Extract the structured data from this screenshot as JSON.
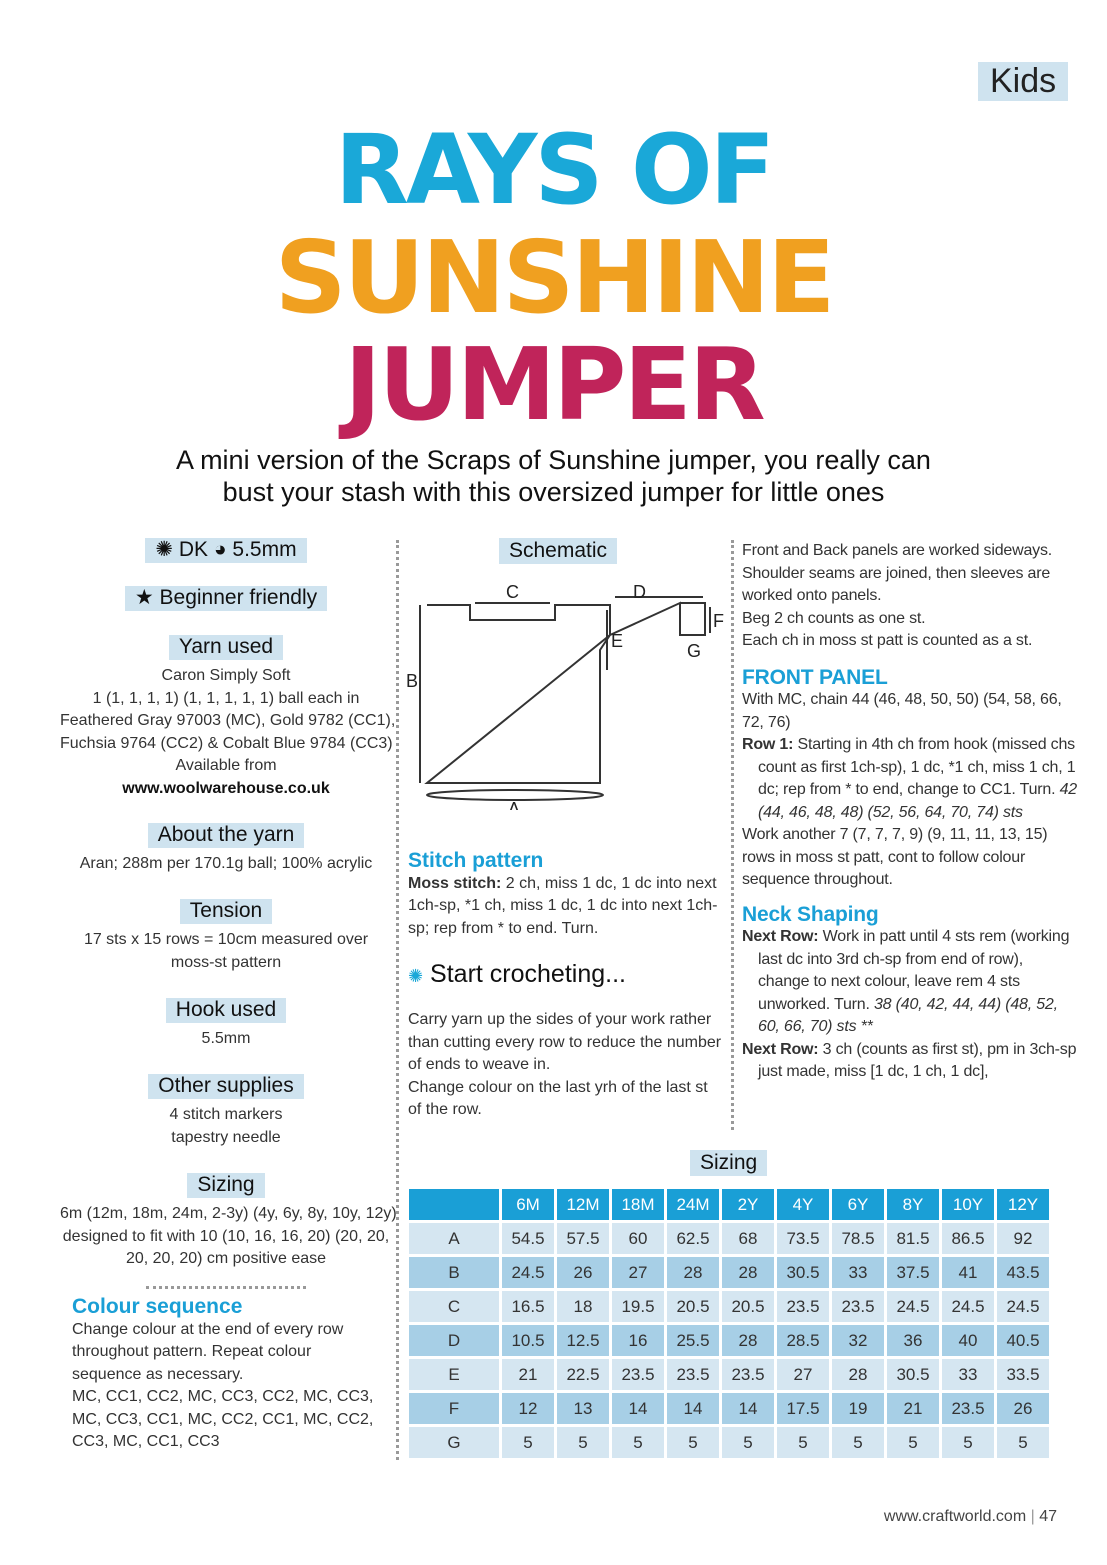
{
  "section_tag": "Kids",
  "title": {
    "line1": "RAYS OF",
    "line2": "SUNSHINE",
    "line3": "JUMPER",
    "colors": [
      "#1aa8d8",
      "#f0a020",
      "#c0245a"
    ]
  },
  "subtitle": [
    "A mini version of the Scraps of Sunshine jumper, you really can",
    "bust your stash with this oversized jumper for little ones"
  ],
  "left": {
    "weight": "DK",
    "hook": "5.5mm",
    "level": "Beginner friendly",
    "yarn_used": {
      "label": "Yarn used",
      "lines": [
        "Caron Simply Soft",
        "1 (1, 1, 1, 1) (1, 1, 1, 1, 1) ball each in",
        "Feathered Gray 97003 (MC), Gold 9782 (CC1),",
        "Fuchsia 9764 (CC2) & Cobalt Blue 9784 (CC3)",
        "Available from"
      ],
      "url": "www.woolwarehouse.co.uk"
    },
    "about": {
      "label": "About the yarn",
      "text": "Aran; 288m per 170.1g ball; 100% acrylic"
    },
    "tension": {
      "label": "Tension",
      "lines": [
        "17 sts x 15 rows = 10cm measured over",
        "moss-st pattern"
      ]
    },
    "hook_used": {
      "label": "Hook used",
      "text": "5.5mm"
    },
    "other": {
      "label": "Other supplies",
      "lines": [
        "4 stitch markers",
        "tapestry needle"
      ]
    },
    "sizing": {
      "label": "Sizing",
      "lines": [
        "6m (12m, 18m, 24m, 2-3y) (4y, 6y, 8y, 10y, 12y)",
        "designed to fit with 10 (10, 16, 16, 20) (20, 20,",
        "20, 20, 20) cm positive ease"
      ]
    },
    "colour_seq": {
      "heading": "Colour sequence",
      "lines": [
        "Change colour at the end of every row",
        "throughout pattern. Repeat colour",
        "sequence as necessary.",
        "MC, CC1, CC2, MC, CC3, CC2, MC, CC3,",
        "MC, CC3, CC1, MC, CC2, CC1, MC, CC2,",
        "CC3, MC, CC1, CC3"
      ]
    }
  },
  "middle": {
    "schematic_label": "Schematic",
    "schematic_letters": [
      "A",
      "B",
      "C",
      "D",
      "E",
      "F",
      "G"
    ],
    "stitch": {
      "heading": "Stitch pattern",
      "bold": "Moss stitch:",
      "text": " 2 ch, miss 1 dc, 1 dc into next 1ch-sp, *1 ch, miss 1 dc, 1 dc into next 1ch-sp; rep from * to end. Turn."
    },
    "start": {
      "heading": "Start crocheting...",
      "p1": "Carry yarn up the sides of your work rather than cutting every row to reduce the number of ends to weave in.",
      "p2": "Change colour on the last yrh of the last st of the row."
    }
  },
  "right": {
    "intro": [
      "Front and Back panels are worked sideways. Shoulder seams are joined, then sleeves are worked onto panels.",
      "Beg 2 ch counts as one st.",
      "Each ch in moss st patt is counted as a st."
    ],
    "front": {
      "heading": "FRONT PANEL",
      "p1": "With MC, chain 44 (46, 48, 50, 50) (54, 58, 66, 72, 76)",
      "row1_bold": "Row 1:",
      "row1": " Starting in 4th ch from hook (missed chs count as first 1ch-sp), 1 dc, *1 ch, miss 1 ch, 1 dc; rep from * to end, change to CC1. Turn. ",
      "row1_it": "42 (44, 46, 48, 48) (52, 56, 64, 70, 74) sts",
      "p2": "Work another 7 (7, 7, 7, 9) (9, 11, 11, 13, 15) rows in moss st patt, cont to follow colour sequence throughout."
    },
    "neck": {
      "heading": "Neck Shaping",
      "r1_bold": "Next Row:",
      "r1": " Work in patt until 4 sts rem (working last dc into 3rd ch-sp from end of row), change to next colour, leave rem 4 sts unworked. Turn. ",
      "r1_it": "38 (40, 42, 44, 44) (48, 52, 60, 66, 70) sts **",
      "r2_bold": "Next Row:",
      "r2": " 3 ch (counts as first st), pm in 3ch-sp just made, miss [1 dc, 1 ch, 1 dc],"
    }
  },
  "sizing_table": {
    "label": "Sizing",
    "headers": [
      "6M",
      "12M",
      "18M",
      "24M",
      "2Y",
      "4Y",
      "6Y",
      "8Y",
      "10Y",
      "12Y"
    ],
    "rows": [
      [
        "A",
        "54.5",
        "57.5",
        "60",
        "62.5",
        "68",
        "73.5",
        "78.5",
        "81.5",
        "86.5",
        "92"
      ],
      [
        "B",
        "24.5",
        "26",
        "27",
        "28",
        "28",
        "30.5",
        "33",
        "37.5",
        "41",
        "43.5"
      ],
      [
        "C",
        "16.5",
        "18",
        "19.5",
        "20.5",
        "20.5",
        "23.5",
        "23.5",
        "24.5",
        "24.5",
        "24.5"
      ],
      [
        "D",
        "10.5",
        "12.5",
        "16",
        "25.5",
        "28",
        "28.5",
        "32",
        "36",
        "40",
        "40.5"
      ],
      [
        "E",
        "21",
        "22.5",
        "23.5",
        "23.5",
        "23.5",
        "27",
        "28",
        "30.5",
        "33",
        "33.5"
      ],
      [
        "F",
        "12",
        "13",
        "14",
        "14",
        "14",
        "17.5",
        "19",
        "21",
        "23.5",
        "26"
      ],
      [
        "G",
        "5",
        "5",
        "5",
        "5",
        "5",
        "5",
        "5",
        "5",
        "5",
        "5"
      ]
    ]
  },
  "footer": {
    "url": "www.craftworld.com",
    "page": "47"
  }
}
